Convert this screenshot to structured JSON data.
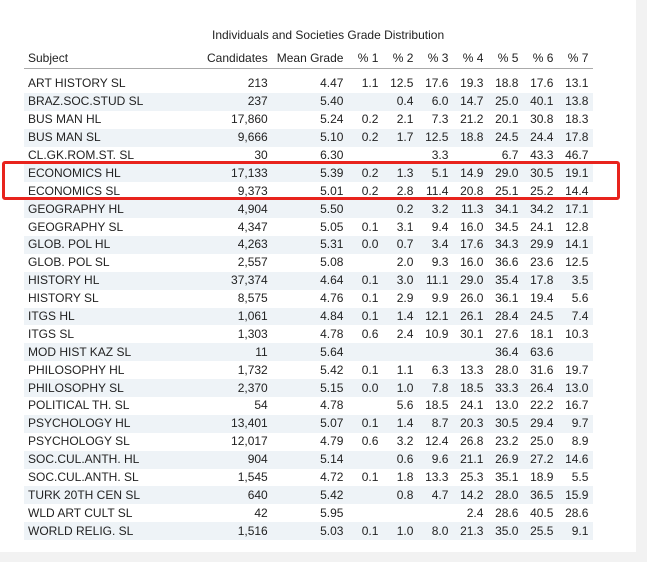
{
  "table_title": "Individuals and Societies Grade Distribution",
  "headers": [
    "Subject",
    "Candidates",
    "Mean Grade",
    "% 1",
    "% 2",
    "% 3",
    "% 4",
    "% 5",
    "% 6",
    "% 7"
  ],
  "rows": [
    [
      "ART HISTORY SL",
      "213",
      "4.47",
      "1.1",
      "12.5",
      "17.6",
      "19.3",
      "18.8",
      "17.6",
      "13.1"
    ],
    [
      "BRAZ.SOC.STUD SL",
      "237",
      "5.40",
      "",
      "0.4",
      "6.0",
      "14.7",
      "25.0",
      "40.1",
      "13.8"
    ],
    [
      "BUS MAN HL",
      "17,860",
      "5.24",
      "0.2",
      "2.1",
      "7.3",
      "21.2",
      "20.1",
      "30.8",
      "18.3"
    ],
    [
      "BUS MAN SL",
      "9,666",
      "5.10",
      "0.2",
      "1.7",
      "12.5",
      "18.8",
      "24.5",
      "24.4",
      "17.8"
    ],
    [
      "CL.GK.ROM.ST. SL",
      "30",
      "6.30",
      "",
      "",
      "3.3",
      "",
      "6.7",
      "43.3",
      "46.7"
    ],
    [
      "ECONOMICS HL",
      "17,133",
      "5.39",
      "0.2",
      "1.3",
      "5.1",
      "14.9",
      "29.0",
      "30.5",
      "19.1"
    ],
    [
      "ECONOMICS SL",
      "9,373",
      "5.01",
      "0.2",
      "2.8",
      "11.4",
      "20.8",
      "25.1",
      "25.2",
      "14.4"
    ],
    [
      "GEOGRAPHY HL",
      "4,904",
      "5.50",
      "",
      "0.2",
      "3.2",
      "11.3",
      "34.1",
      "34.2",
      "17.1"
    ],
    [
      "GEOGRAPHY SL",
      "4,347",
      "5.05",
      "0.1",
      "3.1",
      "9.4",
      "16.0",
      "34.5",
      "24.1",
      "12.8"
    ],
    [
      "GLOB. POL HL",
      "4,263",
      "5.31",
      "0.0",
      "0.7",
      "3.4",
      "17.6",
      "34.3",
      "29.9",
      "14.1"
    ],
    [
      "GLOB. POL SL",
      "2,557",
      "5.08",
      "",
      "2.0",
      "9.3",
      "16.0",
      "36.6",
      "23.6",
      "12.5"
    ],
    [
      "HISTORY HL",
      "37,374",
      "4.64",
      "0.1",
      "3.0",
      "11.1",
      "29.0",
      "35.4",
      "17.8",
      "3.5"
    ],
    [
      "HISTORY SL",
      "8,575",
      "4.76",
      "0.1",
      "2.9",
      "9.9",
      "26.0",
      "36.1",
      "19.4",
      "5.6"
    ],
    [
      "ITGS HL",
      "1,061",
      "4.84",
      "0.1",
      "1.4",
      "12.1",
      "26.1",
      "28.4",
      "24.5",
      "7.4"
    ],
    [
      "ITGS SL",
      "1,303",
      "4.78",
      "0.6",
      "2.4",
      "10.9",
      "30.1",
      "27.6",
      "18.1",
      "10.3"
    ],
    [
      "MOD HIST KAZ SL",
      "11",
      "5.64",
      "",
      "",
      "",
      "",
      "36.4",
      "63.6",
      ""
    ],
    [
      "PHILOSOPHY HL",
      "1,732",
      "5.42",
      "0.1",
      "1.1",
      "6.3",
      "13.3",
      "28.0",
      "31.6",
      "19.7"
    ],
    [
      "PHILOSOPHY SL",
      "2,370",
      "5.15",
      "0.0",
      "1.0",
      "7.8",
      "18.5",
      "33.3",
      "26.4",
      "13.0"
    ],
    [
      "POLITICAL TH. SL",
      "54",
      "4.78",
      "",
      "5.6",
      "18.5",
      "24.1",
      "13.0",
      "22.2",
      "16.7"
    ],
    [
      "PSYCHOLOGY HL",
      "13,401",
      "5.07",
      "0.1",
      "1.4",
      "8.7",
      "20.3",
      "30.5",
      "29.4",
      "9.7"
    ],
    [
      "PSYCHOLOGY SL",
      "12,017",
      "4.79",
      "0.6",
      "3.2",
      "12.4",
      "26.8",
      "23.2",
      "25.0",
      "8.9"
    ],
    [
      "SOC.CUL.ANTH. HL",
      "904",
      "5.14",
      "",
      "0.6",
      "9.6",
      "21.1",
      "26.9",
      "27.2",
      "14.6"
    ],
    [
      "SOC.CUL.ANTH. SL",
      "1,545",
      "4.72",
      "0.1",
      "1.8",
      "13.3",
      "25.3",
      "35.1",
      "18.9",
      "5.5"
    ],
    [
      "TURK 20TH CEN SL",
      "640",
      "5.42",
      "",
      "0.8",
      "4.7",
      "14.2",
      "28.0",
      "36.5",
      "15.9"
    ],
    [
      "WLD ART CULT SL",
      "42",
      "5.95",
      "",
      "",
      "",
      "2.4",
      "28.6",
      "40.5",
      "28.6"
    ],
    [
      "WORLD RELIG. SL",
      "1,516",
      "5.03",
      "0.1",
      "1.0",
      "8.0",
      "21.3",
      "35.0",
      "25.5",
      "9.1"
    ]
  ],
  "highlight_color": "#e8231d"
}
